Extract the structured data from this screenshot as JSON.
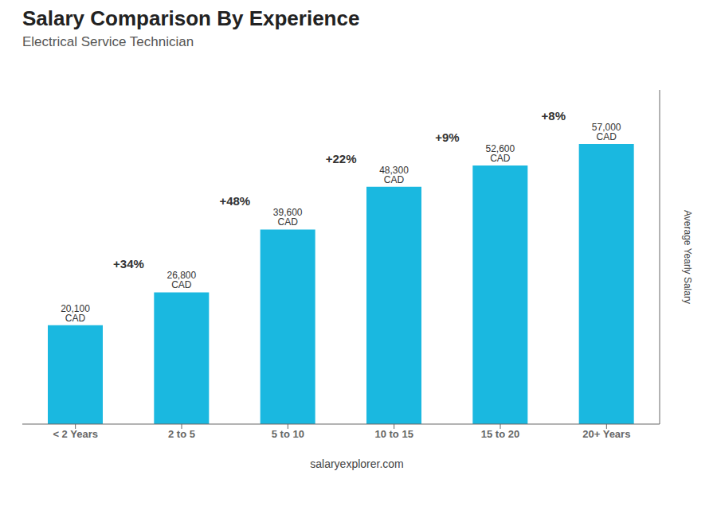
{
  "chart_data": {
    "type": "bar",
    "title": "Salary Comparison By Experience",
    "subtitle": "Electrical Service Technician",
    "categories": [
      "< 2 Years",
      "2 to 5",
      "5 to 10",
      "10 to 15",
      "15 to 20",
      "20+ Years"
    ],
    "values": [
      20100,
      26800,
      39600,
      48300,
      52600,
      57000
    ],
    "value_labels": [
      "20,100 CAD",
      "26,800 CAD",
      "39,600 CAD",
      "48,300 CAD",
      "52,600 CAD",
      "57,000 CAD"
    ],
    "data_labels": true,
    "color": "#1ab8e0",
    "ylabel": "Average Yearly Salary",
    "ylim": [
      0,
      68000
    ],
    "tick_labels": "x",
    "grid": false,
    "annotations": [
      {
        "text": "+34%",
        "from": "< 2 Years",
        "to": "2 to 5"
      },
      {
        "text": "+48%",
        "from": "2 to 5",
        "to": "5 to 10"
      },
      {
        "text": "+22%",
        "from": "5 to 10",
        "to": "10 to 15"
      },
      {
        "text": "+9%",
        "from": "10 to 15",
        "to": "15 to 20"
      },
      {
        "text": "+8%",
        "from": "15 to 20",
        "to": "20+ Years"
      },
      {
        "text": "salaryexplorer.com"
      }
    ]
  }
}
